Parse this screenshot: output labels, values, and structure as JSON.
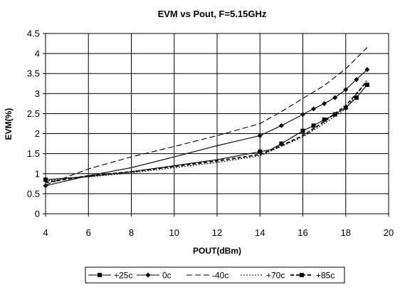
{
  "chart_data": {
    "type": "line",
    "title": "EVM vs Pout, F=5.15GHz",
    "xlabel": "POUT(dBm)",
    "ylabel": "EVM(%)",
    "xlim": [
      4,
      20
    ],
    "ylim": [
      0,
      4.5
    ],
    "x_ticks": [
      "4",
      "6",
      "8",
      "10",
      "12",
      "14",
      "16",
      "18",
      "20"
    ],
    "y_ticks": [
      "0",
      "0.5",
      "1",
      "1.5",
      "2",
      "2.5",
      "3",
      "3.5",
      "4",
      "4.5"
    ],
    "grid": true,
    "legend_position": "bottom",
    "series": [
      {
        "name": "+25c",
        "marker": "square",
        "line_style": "solid",
        "color": "#000000",
        "points": [
          [
            4,
            0.85
          ],
          [
            6,
            0.93
          ],
          [
            8,
            1.05
          ],
          [
            10,
            1.2
          ],
          [
            12,
            1.35
          ],
          [
            14,
            1.55
          ],
          [
            14.5,
            1.6
          ],
          [
            15,
            1.75
          ],
          [
            16,
            2.07
          ],
          [
            16.5,
            2.2
          ],
          [
            17,
            2.35
          ],
          [
            17.5,
            2.48
          ],
          [
            18,
            2.65
          ],
          [
            18.5,
            2.9
          ],
          [
            19,
            3.22
          ]
        ],
        "marker_x": [
          4,
          14,
          15,
          16,
          16.5,
          17,
          17.5,
          18,
          18.5,
          19
        ]
      },
      {
        "name": "0c",
        "marker": "diamond",
        "line_style": "solid",
        "color": "#000000",
        "points": [
          [
            4,
            0.7
          ],
          [
            6,
            0.95
          ],
          [
            8,
            1.15
          ],
          [
            10,
            1.42
          ],
          [
            12,
            1.7
          ],
          [
            14,
            1.95
          ],
          [
            15,
            2.2
          ],
          [
            16,
            2.48
          ],
          [
            16.5,
            2.62
          ],
          [
            17,
            2.75
          ],
          [
            17.5,
            2.9
          ],
          [
            18,
            3.1
          ],
          [
            18.5,
            3.35
          ],
          [
            19,
            3.6
          ]
        ],
        "marker_x": [
          4,
          14,
          15,
          16,
          16.5,
          17,
          17.5,
          18,
          18.5,
          19
        ]
      },
      {
        "name": "-40c",
        "marker": "none",
        "line_style": "long-dash",
        "color": "#000000",
        "points": [
          [
            4,
            0.72
          ],
          [
            6,
            1.12
          ],
          [
            8,
            1.42
          ],
          [
            10,
            1.68
          ],
          [
            12,
            1.95
          ],
          [
            14,
            2.25
          ],
          [
            15,
            2.55
          ],
          [
            16,
            2.88
          ],
          [
            17,
            3.2
          ],
          [
            18,
            3.62
          ],
          [
            19,
            4.15
          ]
        ],
        "marker_x": []
      },
      {
        "name": "+70c",
        "marker": "none",
        "line_style": "dotted",
        "color": "#000000",
        "points": [
          [
            4,
            0.82
          ],
          [
            6,
            0.92
          ],
          [
            8,
            1.02
          ],
          [
            10,
            1.15
          ],
          [
            12,
            1.28
          ],
          [
            14,
            1.45
          ],
          [
            15,
            1.68
          ],
          [
            16,
            1.92
          ],
          [
            17,
            2.25
          ],
          [
            18,
            2.62
          ],
          [
            19,
            3.35
          ]
        ],
        "marker_x": []
      },
      {
        "name": "+85c",
        "marker": "square",
        "line_style": "dash",
        "color": "#000000",
        "points": [
          [
            4,
            0.78
          ],
          [
            6,
            0.95
          ],
          [
            8,
            1.05
          ],
          [
            10,
            1.18
          ],
          [
            12,
            1.32
          ],
          [
            14,
            1.48
          ],
          [
            15,
            1.7
          ],
          [
            16,
            1.95
          ],
          [
            17,
            2.3
          ],
          [
            18,
            2.7
          ],
          [
            19,
            3.3
          ]
        ],
        "marker_x": []
      }
    ]
  }
}
